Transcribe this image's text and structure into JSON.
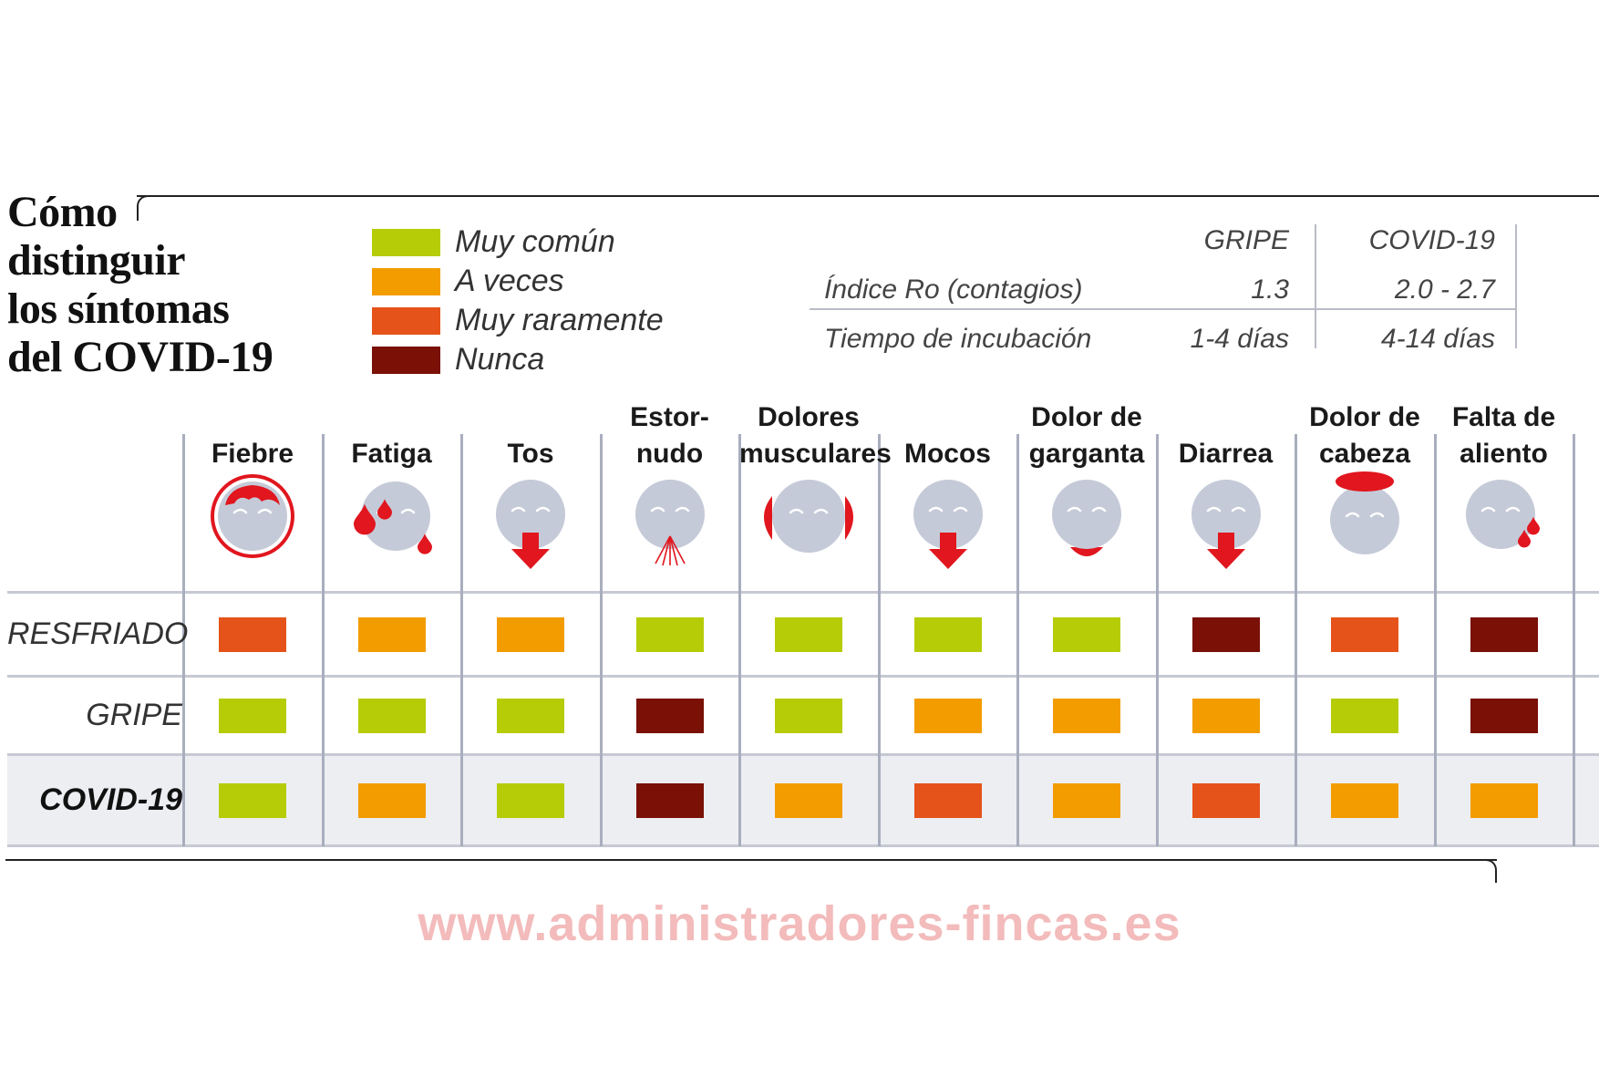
{
  "title": {
    "lines": [
      "Cómo",
      "distinguir",
      "los síntomas",
      "del COVID-19"
    ]
  },
  "colors": {
    "muy_comun": "#b5cc06",
    "a_veces": "#f39c00",
    "muy_raramente": "#e5531a",
    "nunca": "#7a1006",
    "icon_face": "#c5cad8",
    "icon_red": "#e1161e"
  },
  "legend": [
    {
      "key": "muy_comun",
      "label": "Muy común"
    },
    {
      "key": "a_veces",
      "label": "A veces"
    },
    {
      "key": "muy_raramente",
      "label": "Muy raramente"
    },
    {
      "key": "nunca",
      "label": "Nunca"
    }
  ],
  "info_table": {
    "header": {
      "gripe": "GRIPE",
      "covid": "COVID-19"
    },
    "rows": [
      {
        "label": "Índice Ro (contagios)",
        "gripe": "1.3",
        "covid": "2.0 - 2.7"
      },
      {
        "label": "Tiempo de incubación",
        "gripe": "1-4 días",
        "covid": "4-14 días"
      }
    ]
  },
  "symptoms": [
    {
      "lines": [
        "Fiebre"
      ],
      "icon": "fever-icon"
    },
    {
      "lines": [
        "Fatiga"
      ],
      "icon": "fatigue-icon"
    },
    {
      "lines": [
        "Tos"
      ],
      "icon": "cough-icon"
    },
    {
      "lines": [
        "Estor-",
        "nudo"
      ],
      "icon": "sneeze-icon"
    },
    {
      "lines": [
        "Dolores",
        "musculares"
      ],
      "icon": "muscle-pain-icon"
    },
    {
      "lines": [
        "Mocos"
      ],
      "icon": "runny-nose-icon"
    },
    {
      "lines": [
        "Dolor de",
        "garganta"
      ],
      "icon": "sore-throat-icon"
    },
    {
      "lines": [
        "Diarrea"
      ],
      "icon": "diarrhea-icon"
    },
    {
      "lines": [
        "Dolor de",
        "cabeza"
      ],
      "icon": "headache-icon"
    },
    {
      "lines": [
        "Falta  de",
        "aliento"
      ],
      "icon": "shortness-of-breath-icon"
    }
  ],
  "rows": [
    {
      "label": "RESFRIADO",
      "bold": false,
      "values": [
        "muy_raramente",
        "a_veces",
        "a_veces",
        "muy_comun",
        "muy_comun",
        "muy_comun",
        "muy_comun",
        "nunca",
        "muy_raramente",
        "nunca"
      ]
    },
    {
      "label": "GRIPE",
      "bold": false,
      "values": [
        "muy_comun",
        "muy_comun",
        "muy_comun",
        "nunca",
        "muy_comun",
        "a_veces",
        "a_veces",
        "a_veces",
        "muy_comun",
        "nunca"
      ]
    },
    {
      "label": "COVID-19",
      "bold": true,
      "values": [
        "muy_comun",
        "a_veces",
        "muy_comun",
        "nunca",
        "a_veces",
        "muy_raramente",
        "a_veces",
        "muy_raramente",
        "a_veces",
        "a_veces"
      ]
    }
  ],
  "watermark": "www.administradores-fincas.es"
}
